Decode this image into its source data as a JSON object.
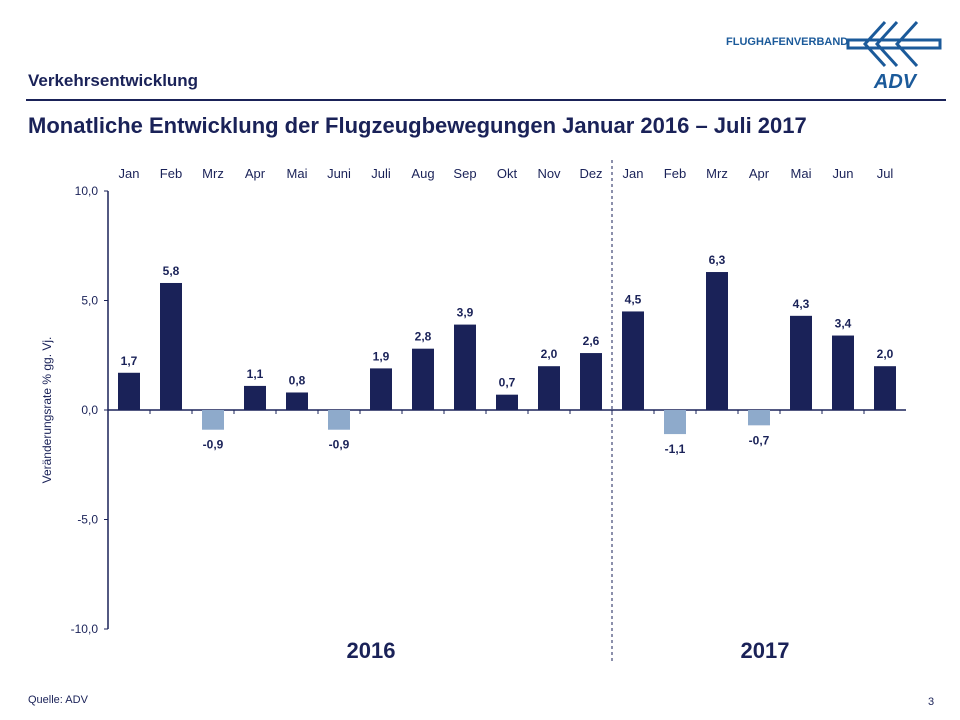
{
  "header": {
    "section": "Verkehrsentwicklung",
    "logo_text": "FLUGHAFENVERBAND",
    "logo_mark": "ADV"
  },
  "footer": {
    "source": "Quelle: ADV",
    "page": "3"
  },
  "colors": {
    "positive": "#1a2258",
    "negative": "#8eaacb",
    "text": "#1a2258"
  },
  "chart_data": {
    "type": "bar",
    "title": "Monatliche Entwicklung der Flugzeugbewegungen Januar 2016 – Juli 2017",
    "ylabel": "Veränderungsrate % gg. Vj.",
    "ylim": [
      -10,
      10
    ],
    "yticks": [
      "10,0",
      "5,0",
      "0,0",
      "-5,0",
      "-10,0"
    ],
    "yticks_values": [
      10,
      5,
      0,
      -5,
      -10
    ],
    "grid": false,
    "categories": [
      "Jan",
      "Feb",
      "Mrz",
      "Apr",
      "Mai",
      "Juni",
      "Juli",
      "Aug",
      "Sep",
      "Okt",
      "Nov",
      "Dez",
      "Jan",
      "Feb",
      "Mrz",
      "Apr",
      "Mai",
      "Jun",
      "Jul"
    ],
    "values": [
      1.7,
      5.8,
      -0.9,
      1.1,
      0.8,
      -0.9,
      1.9,
      2.8,
      3.9,
      0.7,
      2.0,
      2.6,
      4.5,
      -1.1,
      6.3,
      -0.7,
      4.3,
      3.4,
      2.0
    ],
    "labels": [
      "1,7",
      "5,8",
      "-0,9",
      "1,1",
      "0,8",
      "-0,9",
      "1,9",
      "2,8",
      "3,9",
      "0,7",
      "2,0",
      "2,6",
      "4,5",
      "-1,1",
      "6,3",
      "-0,7",
      "4,3",
      "3,4",
      "2,0"
    ],
    "groups": [
      {
        "label": "2016"
      },
      {
        "label": "2017"
      }
    ]
  }
}
